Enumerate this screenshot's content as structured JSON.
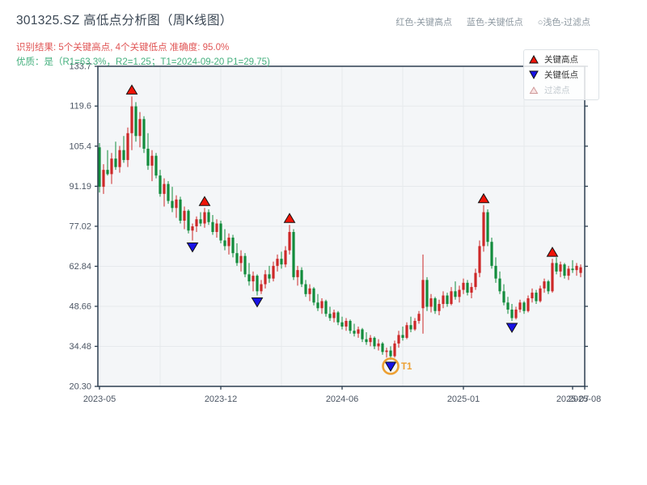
{
  "header": {
    "title": "301325.SZ 高低点分析图（周K线图）",
    "note_high": "红色-关键高点",
    "note_low": "蓝色-关键低点",
    "note_filtered": "○浅色-过滤点",
    "result_line": "识别结果: 5个关键高点, 4个关键低点  准确度: 95.0%",
    "quality_line": "优质：是（R1=63.3%，R2=1.25；T1=2024-09-20 P1=29.75)"
  },
  "plot_legend": {
    "high_label": "关键高点",
    "low_label": "关键低点",
    "filtered_label": "过滤点"
  },
  "chart_data": {
    "type": "candlestick",
    "timeframe": "weekly",
    "symbol": "301325.SZ",
    "title": "301325.SZ 高低点分析图（周K线图）",
    "ylim": [
      20.3,
      133.7
    ],
    "y_ticks": [
      {
        "label": "133.7",
        "value": 133.7
      },
      {
        "label": "119.6",
        "value": 119.6
      },
      {
        "label": "105.4",
        "value": 105.4
      },
      {
        "label": "91.19",
        "value": 91.19
      },
      {
        "label": "77.02",
        "value": 77.02
      },
      {
        "label": "62.84",
        "value": 62.84
      },
      {
        "label": "48.66",
        "value": 48.66
      },
      {
        "label": "34.48",
        "value": 34.48
      },
      {
        "label": "20.30",
        "value": 20.3
      }
    ],
    "x_ticks": [
      {
        "label": "2023-05",
        "week": 0
      },
      {
        "label": "2023-12",
        "week": 30
      },
      {
        "label": "2024-06",
        "week": 60
      },
      {
        "label": "2025-01",
        "week": 90
      },
      {
        "label": "2025-07",
        "week": 117
      },
      {
        "label": "2025-08",
        "week": 120
      }
    ],
    "grid_week_step": 15,
    "candles": [
      [
        105,
        106.5,
        89,
        91
      ],
      [
        91,
        99,
        88.5,
        97
      ],
      [
        97,
        104,
        95,
        95.5
      ],
      [
        95.5,
        103,
        92,
        101
      ],
      [
        101,
        107,
        97,
        98
      ],
      [
        98,
        105.5,
        96,
        104
      ],
      [
        104,
        109,
        99.5,
        100.5
      ],
      [
        100.5,
        112,
        98,
        110
      ],
      [
        110,
        123,
        104,
        119.5
      ],
      [
        119.5,
        121,
        107,
        109
      ],
      [
        109,
        117.5,
        105,
        115
      ],
      [
        115,
        116,
        103,
        104.5
      ],
      [
        104.5,
        110,
        97,
        98.5
      ],
      [
        98.5,
        104,
        93,
        102
      ],
      [
        102,
        103,
        94,
        95
      ],
      [
        95,
        97,
        87.5,
        88.5
      ],
      [
        88.5,
        94,
        84,
        92
      ],
      [
        92,
        93,
        85,
        86
      ],
      [
        86,
        91,
        82,
        83.5
      ],
      [
        83.5,
        88,
        80,
        86.5
      ],
      [
        86.5,
        87.5,
        78,
        79
      ],
      [
        79,
        84,
        76,
        82.5
      ],
      [
        82.5,
        83,
        74.5,
        75.5
      ],
      [
        75.5,
        78,
        72,
        77
      ],
      [
        77,
        80.5,
        75,
        79.5
      ],
      [
        79.5,
        82,
        77,
        78
      ],
      [
        78,
        83.5,
        76.5,
        82
      ],
      [
        82,
        83,
        77.5,
        78.5
      ],
      [
        78.5,
        81,
        74,
        75
      ],
      [
        75,
        79.5,
        73,
        78
      ],
      [
        78,
        79,
        71,
        72
      ],
      [
        72,
        76,
        68.5,
        70
      ],
      [
        70,
        74.5,
        67,
        73
      ],
      [
        73,
        74,
        66,
        67.5
      ],
      [
        67.5,
        71,
        63,
        64
      ],
      [
        64,
        68.5,
        61,
        66.5
      ],
      [
        66.5,
        67.5,
        59,
        60
      ],
      [
        60,
        64,
        56,
        57.5
      ],
      [
        57.5,
        61,
        54,
        59.5
      ],
      [
        59.5,
        60,
        52.5,
        54
      ],
      [
        54,
        58,
        53,
        56.5
      ],
      [
        56.5,
        61.5,
        55,
        60
      ],
      [
        60,
        63,
        57,
        58.5
      ],
      [
        58.5,
        64.5,
        57.5,
        63
      ],
      [
        63,
        67,
        61,
        65.5
      ],
      [
        65.5,
        68,
        62,
        63.5
      ],
      [
        63.5,
        70,
        62.5,
        68.5
      ],
      [
        68.5,
        77.5,
        67,
        75
      ],
      [
        75,
        76,
        58,
        59
      ],
      [
        59,
        63,
        56,
        61.5
      ],
      [
        61.5,
        62.5,
        55.5,
        56.5
      ],
      [
        56.5,
        58,
        52,
        53
      ],
      [
        53,
        56.5,
        50.5,
        55
      ],
      [
        55,
        55.5,
        49,
        50
      ],
      [
        50,
        53,
        47,
        48
      ],
      [
        48,
        51.5,
        46,
        50.5
      ],
      [
        50.5,
        51,
        45,
        46
      ],
      [
        46,
        48.5,
        43.5,
        44.5
      ],
      [
        44.5,
        47.5,
        43,
        46.5
      ],
      [
        46.5,
        47,
        42,
        43
      ],
      [
        43,
        45,
        40.5,
        41.5
      ],
      [
        41.5,
        44.5,
        40,
        43.5
      ],
      [
        43.5,
        44,
        39,
        40
      ],
      [
        40,
        42.5,
        38,
        39
      ],
      [
        39,
        41.5,
        37.5,
        40.5
      ],
      [
        40.5,
        41,
        36,
        37
      ],
      [
        37,
        39.5,
        35,
        36
      ],
      [
        36,
        38.5,
        34.5,
        37.5
      ],
      [
        37.5,
        38,
        33.5,
        34.5
      ],
      [
        34.5,
        37,
        33,
        35.5
      ],
      [
        35.5,
        36,
        31.5,
        32.5
      ],
      [
        32.5,
        34,
        30.5,
        33
      ],
      [
        33,
        34.5,
        29.75,
        31
      ],
      [
        31,
        36.5,
        30.5,
        35.5
      ],
      [
        35.5,
        40,
        34,
        38.5
      ],
      [
        38.5,
        41.5,
        36.5,
        37.5
      ],
      [
        37.5,
        43,
        37,
        42
      ],
      [
        42,
        45,
        39.5,
        40.5
      ],
      [
        40.5,
        44.5,
        40,
        43.5
      ],
      [
        43.5,
        47,
        42.5,
        46
      ],
      [
        48,
        67,
        39,
        58
      ],
      [
        58,
        59,
        47,
        48.5
      ],
      [
        48.5,
        53,
        46.5,
        51.5
      ],
      [
        51.5,
        52,
        46,
        47
      ],
      [
        47,
        51,
        45.5,
        49.5
      ],
      [
        49.5,
        54,
        48,
        52.5
      ],
      [
        52.5,
        53.5,
        48.5,
        49.5
      ],
      [
        49.5,
        55.5,
        49,
        54
      ],
      [
        54,
        57.5,
        51,
        52
      ],
      [
        52,
        56,
        50,
        54.5
      ],
      [
        54.5,
        58.5,
        53,
        57
      ],
      [
        57,
        58,
        52.5,
        53.5
      ],
      [
        53.5,
        57,
        51.5,
        55.5
      ],
      [
        55.5,
        62,
        54.5,
        60.5
      ],
      [
        60.5,
        72,
        59,
        70
      ],
      [
        70,
        84.5,
        68,
        82
      ],
      [
        82,
        83,
        70,
        71.5
      ],
      [
        71.5,
        73,
        62,
        63
      ],
      [
        63,
        66,
        57,
        58.5
      ],
      [
        58.5,
        61,
        53,
        54
      ],
      [
        54,
        56.5,
        49,
        50
      ],
      [
        50,
        52,
        46,
        47.5
      ],
      [
        47.5,
        49.5,
        43.5,
        44.5
      ],
      [
        44.5,
        48.5,
        44,
        47.5
      ],
      [
        47.5,
        51,
        46.5,
        50
      ],
      [
        50,
        50.5,
        46,
        47
      ],
      [
        47,
        52.5,
        46.5,
        51.5
      ],
      [
        51.5,
        55,
        50,
        53.5
      ],
      [
        53.5,
        54.5,
        49.5,
        50.5
      ],
      [
        50.5,
        56,
        50,
        55
      ],
      [
        55,
        58.5,
        53.5,
        57.5
      ],
      [
        57.5,
        58,
        53,
        54
      ],
      [
        54,
        65.5,
        53.5,
        64
      ],
      [
        64,
        66,
        60,
        61
      ],
      [
        61,
        64.5,
        59,
        63.5
      ],
      [
        63.5,
        64,
        58.5,
        59.5
      ],
      [
        59.5,
        63,
        58,
        62
      ],
      [
        62,
        65,
        60.5,
        61.5
      ],
      [
        61.5,
        64,
        59.5,
        63
      ],
      [
        60.5,
        63.5,
        59,
        62.5
      ]
    ],
    "key_highs": [
      {
        "week": 8,
        "price": 123
      },
      {
        "week": 26,
        "price": 83.5
      },
      {
        "week": 47,
        "price": 77.5
      },
      {
        "week": 95,
        "price": 84.5
      },
      {
        "week": 112,
        "price": 65.5
      }
    ],
    "key_lows": [
      {
        "week": 23,
        "price": 72
      },
      {
        "week": 39,
        "price": 52.5
      },
      {
        "week": 72,
        "price": 29.75
      },
      {
        "week": 102,
        "price": 43.5
      }
    ],
    "t1": {
      "week": 72,
      "price": 29.75,
      "label": "T1",
      "date": "2024-09-20"
    },
    "colors": {
      "up_candle": "#cd2828",
      "down_candle": "#128c3c",
      "high_marker": "#f01408",
      "low_marker": "#1812e6",
      "filtered_marker": "#f9e4e4",
      "t1_ring": "#eda033",
      "plot_bg": "#f4f6f8",
      "grid": "#e6e9ec",
      "spine": "#2d3e50",
      "tick_label": "#4b5563"
    },
    "legend_position": "upper-right",
    "grid": true
  }
}
